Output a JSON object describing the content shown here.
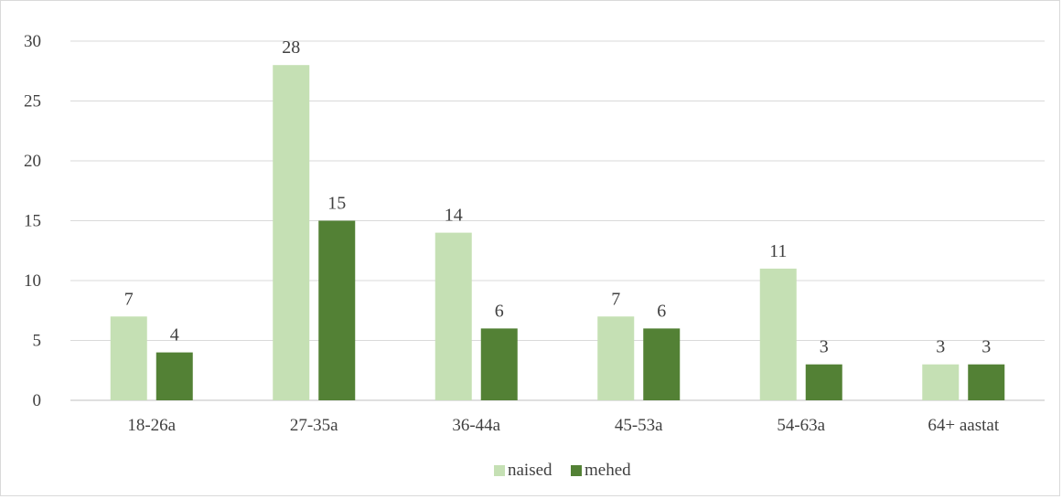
{
  "chart_data": {
    "type": "bar",
    "categories": [
      "18-26a",
      "27-35a",
      "36-44a",
      "45-53a",
      "54-63a",
      "64+ aastat"
    ],
    "series": [
      {
        "name": "naised",
        "values": [
          7,
          28,
          14,
          7,
          11,
          3
        ],
        "color": "#c5e0b4"
      },
      {
        "name": "mehed",
        "values": [
          4,
          15,
          6,
          6,
          3,
          3
        ],
        "color": "#538135"
      }
    ],
    "ylim": [
      0,
      30
    ],
    "yticks": [
      0,
      5,
      10,
      15,
      20,
      25,
      30
    ],
    "grid": true,
    "legend": "bottom",
    "data_labels": true,
    "gridline_color": "#d9d9d9",
    "axis_line_color": "#bfbfbf"
  }
}
